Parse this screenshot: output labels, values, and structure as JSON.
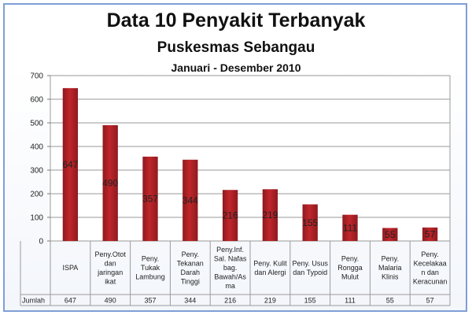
{
  "chart_data": {
    "type": "bar",
    "title": "Data 10 Penyakit Terbanyak",
    "subtitle": "Puskesmas Sebangau",
    "period": "Januari - Desember 2010",
    "categories": [
      [
        "ISPA"
      ],
      [
        "Peny.Otot",
        "dan",
        "jaringan",
        "ikat"
      ],
      [
        "Peny.",
        "Tukak",
        "Lambung"
      ],
      [
        "Peny.",
        "Tekanan",
        "Darah",
        "Tinggi"
      ],
      [
        "Peny.Inf.",
        "Sal. Nafas",
        "bag.",
        "Bawah/As",
        "ma"
      ],
      [
        "Peny. Kulit",
        "dan Alergi"
      ],
      [
        "Peny. Usus",
        "dan Typoid"
      ],
      [
        "Peny.",
        "Rongga",
        "Mulut"
      ],
      [
        "Peny.",
        "Malaria",
        "Klinis"
      ],
      [
        "Peny.",
        "Kecelakaa",
        "n dan",
        "Keracunan"
      ]
    ],
    "series": [
      {
        "name": "Jumlah",
        "values": [
          647,
          490,
          357,
          344,
          216,
          219,
          155,
          111,
          55,
          57
        ]
      }
    ],
    "ylim": [
      0,
      700
    ],
    "yticks": [
      0,
      100,
      200,
      300,
      400,
      500,
      600,
      700
    ],
    "grid": true,
    "table_row_label": "Jumlah",
    "bar_color": "#c0262b",
    "bar_color_dark": "#8e1a1e"
  }
}
